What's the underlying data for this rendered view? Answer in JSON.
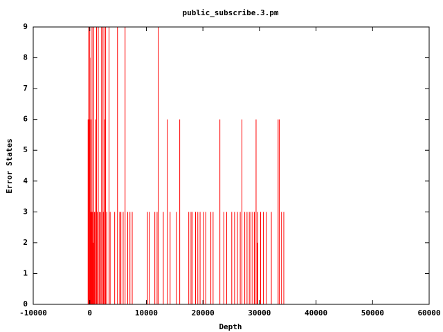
{
  "chart_data": {
    "type": "impulse",
    "title": "public_subscribe.3.pm",
    "xlabel": "Depth",
    "ylabel": "Error States",
    "color": "#ff0000",
    "x": [
      -300,
      -200,
      -100,
      0,
      50,
      100,
      200,
      300,
      400,
      500,
      600,
      700,
      800,
      900,
      1000,
      1200,
      1300,
      1500,
      1700,
      1900,
      2100,
      2200,
      2400,
      2500,
      2700,
      2800,
      3000,
      3400,
      3600,
      4400,
      4900,
      5300,
      5500,
      5900,
      6240,
      6700,
      7100,
      7500,
      10200,
      10500,
      11500,
      11900,
      12100,
      13000,
      13700,
      14200,
      15300,
      15900,
      17500,
      17900,
      18100,
      18700,
      19100,
      19500,
      20100,
      20500,
      21400,
      21800,
      23000,
      23700,
      24200,
      25100,
      25600,
      26100,
      26600,
      26900,
      27400,
      27800,
      28200,
      28500,
      28800,
      29100,
      29400,
      29600,
      29700,
      30200,
      30700,
      31200,
      32100,
      33300,
      33500,
      33900,
      34300
    ],
    "values": [
      6,
      9,
      6,
      9,
      8,
      3,
      6,
      3,
      9,
      3,
      2,
      9,
      3,
      3,
      6,
      9,
      3,
      9,
      3,
      3,
      9,
      9,
      3,
      9,
      6,
      9,
      3,
      9,
      3,
      3,
      9,
      3,
      3,
      3,
      9,
      3,
      3,
      3,
      3,
      3,
      3,
      3,
      9,
      3,
      6,
      3,
      3,
      6,
      3,
      3,
      3,
      3,
      3,
      3,
      3,
      3,
      3,
      3,
      6,
      3,
      3,
      3,
      3,
      3,
      3,
      6,
      3,
      3,
      3,
      3,
      3,
      3,
      6,
      2,
      3,
      3,
      3,
      3,
      3,
      6,
      6,
      3,
      3
    ],
    "xlim": [
      -10000,
      60000
    ],
    "xticks": [
      -10000,
      0,
      10000,
      20000,
      30000,
      40000,
      50000,
      60000
    ],
    "ylim": [
      0,
      9
    ],
    "yticks": [
      0,
      1,
      2,
      3,
      4,
      5,
      6,
      7,
      8,
      9
    ]
  }
}
